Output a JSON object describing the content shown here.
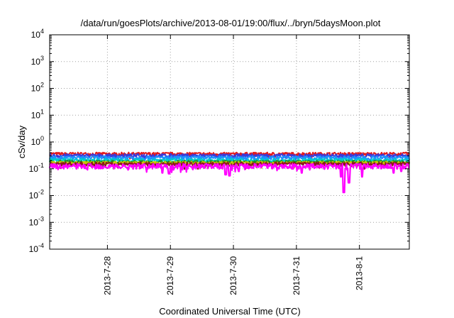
{
  "chart_data": {
    "type": "line",
    "title": "/data/run/goesPlots/archive/2013-08-01/19:00/flux/../bryn/5daysMoon.plot",
    "xlabel": "Coordinated Universal Time (UTC)",
    "ylabel": "cSv/day",
    "yscale": "log",
    "ylim": [
      0.0001,
      10000
    ],
    "xlim": [
      "2013-07-27T02:00",
      "2013-08-01T19:00"
    ],
    "y_ticks": [
      {
        "value": 0.0001,
        "mantissa": "10",
        "exp": "-4"
      },
      {
        "value": 0.001,
        "mantissa": "10",
        "exp": "-3"
      },
      {
        "value": 0.01,
        "mantissa": "10",
        "exp": "-2"
      },
      {
        "value": 0.1,
        "mantissa": "10",
        "exp": "-1"
      },
      {
        "value": 1,
        "mantissa": "10",
        "exp": "0"
      },
      {
        "value": 10,
        "mantissa": "10",
        "exp": "1"
      },
      {
        "value": 100,
        "mantissa": "10",
        "exp": "2"
      },
      {
        "value": 1000,
        "mantissa": "10",
        "exp": "3"
      },
      {
        "value": 10000,
        "mantissa": "10",
        "exp": "4"
      }
    ],
    "x_ticks": [
      {
        "value": "2013-07-28T00:00",
        "label": "2013-7-28"
      },
      {
        "value": "2013-07-29T00:00",
        "label": "2013-7-29"
      },
      {
        "value": "2013-07-30T00:00",
        "label": "2013-7-30"
      },
      {
        "value": "2013-07-31T00:00",
        "label": "2013-7-31"
      },
      {
        "value": "2013-08-01T00:00",
        "label": "2013-8-1"
      }
    ],
    "grid": true,
    "series": [
      {
        "color": "#e41a1c",
        "base": 0.36,
        "noise": 0.06,
        "dips": []
      },
      {
        "color": "#3b3bd9",
        "base": 0.31,
        "noise": 0.06,
        "dips": [
          [
            "2013-07-28T23:00",
            0.22
          ],
          [
            "2013-07-29T23:00",
            0.2
          ]
        ]
      },
      {
        "color": "#1e90ff",
        "base": 0.26,
        "noise": 0.05,
        "dips": []
      },
      {
        "color": "#00cccc",
        "base": 0.21,
        "noise": 0.04,
        "dips": []
      },
      {
        "color": "#228b22",
        "base": 0.18,
        "noise": 0.03,
        "dips": []
      },
      {
        "color": "#c8c800",
        "base": 0.165,
        "noise": 0.03,
        "dips": []
      },
      {
        "color": "#8b1a1a",
        "base": 0.15,
        "noise": 0.03,
        "dips": []
      },
      {
        "color": "#ff00ff",
        "base": 0.125,
        "noise": 0.035,
        "dips": [
          [
            "2013-07-28T21:00",
            0.07
          ],
          [
            "2013-07-28T23:30",
            0.065
          ],
          [
            "2013-07-29T21:00",
            0.06
          ],
          [
            "2013-07-29T22:30",
            0.055
          ],
          [
            "2013-07-30T02:00",
            0.08
          ],
          [
            "2013-07-31T02:00",
            0.07
          ],
          [
            "2013-07-31T17:00",
            0.05
          ],
          [
            "2013-07-31T18:00",
            0.013
          ],
          [
            "2013-07-31T20:00",
            0.03
          ],
          [
            "2013-08-01T01:00",
            0.05
          ],
          [
            "2013-08-01T13:00",
            0.07
          ],
          [
            "2013-08-01T16:00",
            0.08
          ]
        ]
      }
    ]
  }
}
